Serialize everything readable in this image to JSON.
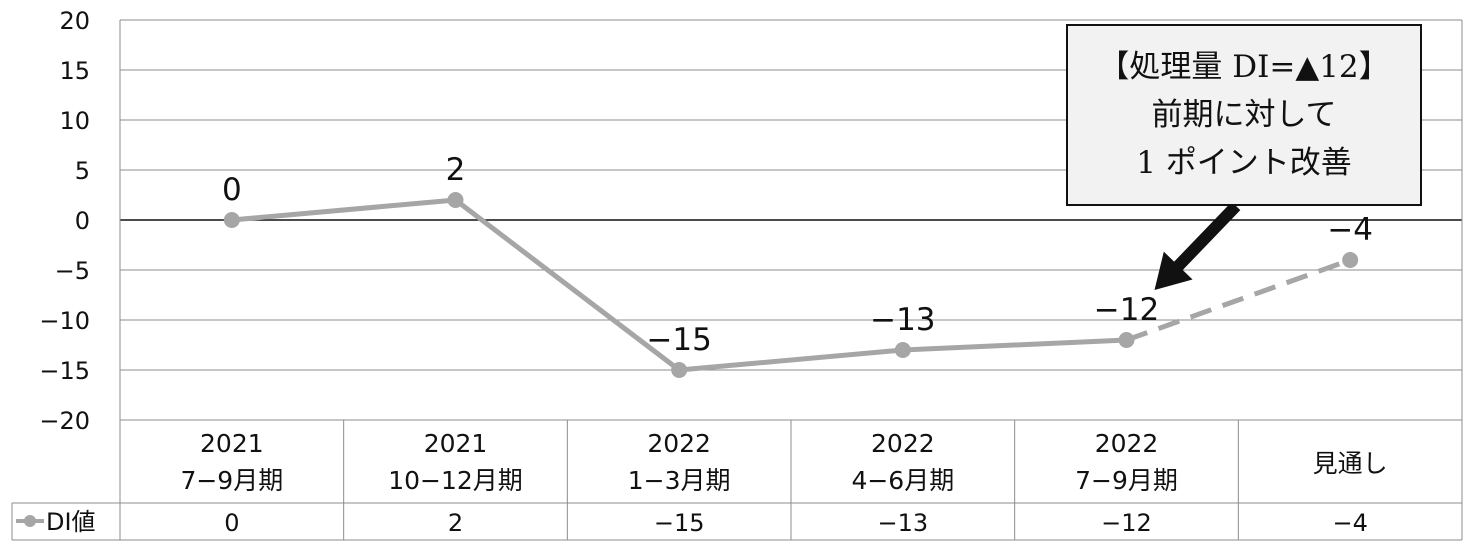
{
  "chart_data": {
    "type": "line",
    "categories": [
      [
        "2021",
        "7−9月期"
      ],
      [
        "2021",
        "10−12月期"
      ],
      [
        "2022",
        "1−3月期"
      ],
      [
        "2022",
        "4−6月期"
      ],
      [
        "2022",
        "7−9月期"
      ],
      [
        "",
        "見通し"
      ]
    ],
    "series": [
      {
        "name": "DI値",
        "values": [
          0,
          2,
          -15,
          -13,
          -12,
          -4
        ],
        "color": "#a6a6a6",
        "forecast_from_index": 4
      }
    ],
    "data_labels": [
      "0",
      "2",
      "−15",
      "−13",
      "−12",
      "−4"
    ],
    "table_values": [
      "0",
      "2",
      "−15",
      "−13",
      "−12",
      "−4"
    ],
    "ylim": [
      -20,
      20
    ],
    "yticks": [
      20,
      15,
      10,
      5,
      0,
      -5,
      -10,
      -15,
      -20
    ],
    "ytick_labels": [
      "20",
      "15",
      "10",
      "5",
      "0",
      "−5",
      "−10",
      "−15",
      "−20"
    ],
    "grid": true,
    "data_table": true
  },
  "callout": {
    "line1": "【処理量 DI=▲12】",
    "line2": "前期に対して",
    "line3": "1 ポイント改善"
  }
}
